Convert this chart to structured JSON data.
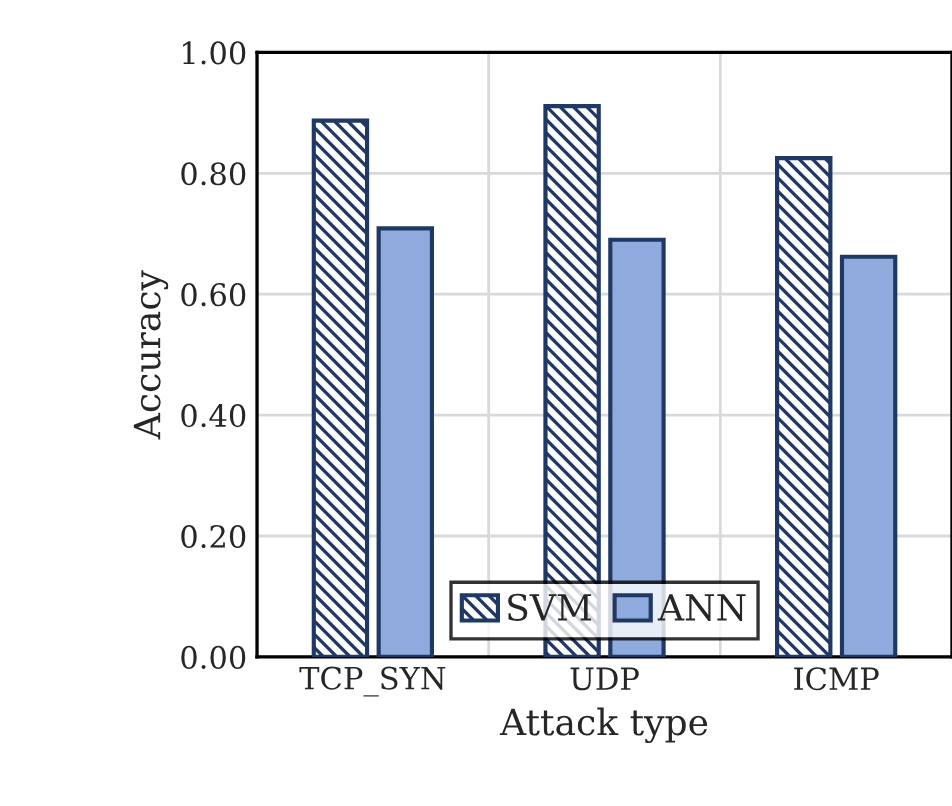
{
  "chart_data": {
    "type": "bar",
    "xlabel": "Attack type",
    "ylabel": "Accuracy",
    "categories": [
      "TCP_SYN",
      "UDP",
      "ICMP"
    ],
    "series": [
      {
        "name": "SVM",
        "color": "#1f3864",
        "values": [
          0.887,
          0.911,
          0.825
        ]
      },
      {
        "name": "ANN",
        "color": "#8faadc",
        "values": [
          0.709,
          0.69,
          0.662
        ]
      }
    ],
    "ylim": [
      0,
      1
    ],
    "yticks": [
      {
        "value": 0,
        "label": "0.00"
      },
      {
        "value": 0.2,
        "label": "0.20"
      },
      {
        "value": 0.4,
        "label": "0.40"
      },
      {
        "value": 0.6,
        "label": "0.60"
      },
      {
        "value": 0.8,
        "label": "0.80"
      },
      {
        "value": 1,
        "label": "1.00"
      }
    ],
    "grid": true,
    "legend": "bottom"
  }
}
